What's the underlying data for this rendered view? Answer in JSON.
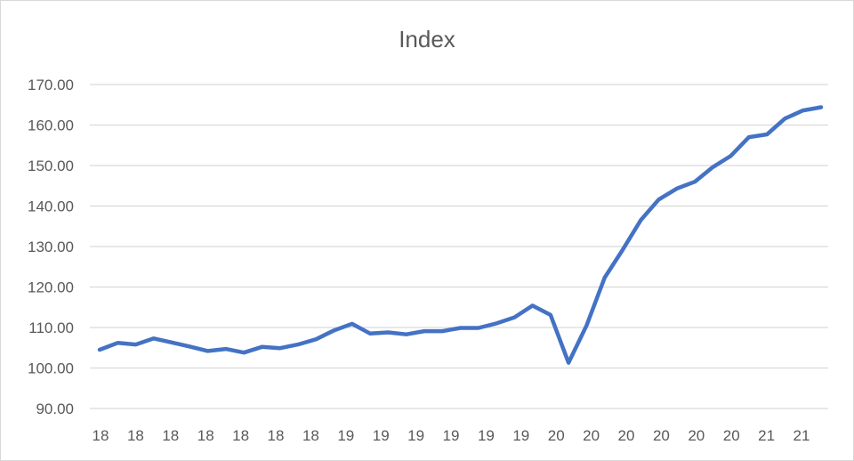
{
  "chart_data": {
    "type": "line",
    "title": "Index",
    "xlabel": "",
    "ylabel": "",
    "ylim": [
      90,
      170
    ],
    "y_ticks": [
      "90.00",
      "100.00",
      "110.00",
      "120.00",
      "130.00",
      "140.00",
      "150.00",
      "160.00",
      "170.00"
    ],
    "x_tick_labels": [
      "18",
      "18",
      "18",
      "18",
      "18",
      "18",
      "18",
      "19",
      "19",
      "19",
      "19",
      "19",
      "19",
      "20",
      "20",
      "20",
      "20",
      "20",
      "20",
      "21",
      "21"
    ],
    "grid": true,
    "legend": "none",
    "line_color": "#4472C4",
    "series": [
      {
        "values": [
          104.5,
          106.2,
          105.8,
          107.3,
          106.3,
          105.3,
          104.2,
          104.7,
          103.8,
          105.2,
          104.9,
          105.8,
          107.1,
          109.3,
          110.9,
          108.5,
          108.8,
          108.3,
          109.1,
          109.1,
          109.9,
          109.9,
          111.0,
          112.5,
          115.4,
          113.1,
          101.3,
          110.5,
          122.3,
          129.2,
          136.5,
          141.6,
          144.3,
          146.0,
          149.6,
          152.4,
          157.0,
          157.7,
          161.6,
          163.6,
          164.4
        ]
      }
    ]
  }
}
